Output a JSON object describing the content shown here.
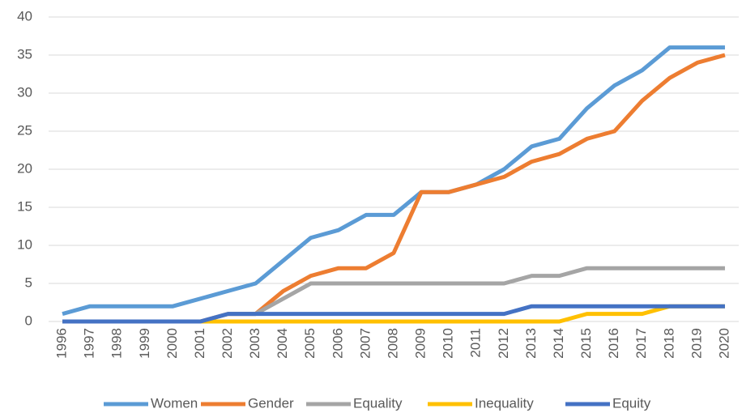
{
  "chart_data": {
    "type": "line",
    "categories": [
      "1996",
      "1997",
      "1998",
      "1999",
      "2000",
      "2001",
      "2002",
      "2003",
      "2004",
      "2005",
      "2006",
      "2007",
      "2008",
      "2009",
      "2010",
      "2011",
      "2012",
      "2013",
      "2014",
      "2015",
      "2016",
      "2017",
      "2018",
      "2019",
      "2020"
    ],
    "series": [
      {
        "name": "Women",
        "color": "#5b9bd5",
        "values": [
          1,
          2,
          2,
          2,
          2,
          3,
          4,
          5,
          8,
          11,
          12,
          14,
          14,
          17,
          17,
          18,
          20,
          23,
          24,
          28,
          31,
          33,
          36,
          36,
          36
        ]
      },
      {
        "name": "Gender",
        "color": "#ed7d31",
        "values": [
          0,
          0,
          0,
          0,
          0,
          0,
          1,
          1,
          4,
          6,
          7,
          7,
          9,
          17,
          17,
          18,
          19,
          21,
          22,
          24,
          25,
          29,
          32,
          34,
          35
        ]
      },
      {
        "name": "Equality",
        "color": "#a5a5a5",
        "values": [
          0,
          0,
          0,
          0,
          0,
          0,
          1,
          1,
          3,
          5,
          5,
          5,
          5,
          5,
          5,
          5,
          5,
          6,
          6,
          7,
          7,
          7,
          7,
          7,
          7
        ]
      },
      {
        "name": "Inequality",
        "color": "#ffc000",
        "values": [
          0,
          0,
          0,
          0,
          0,
          0,
          0,
          0,
          0,
          0,
          0,
          0,
          0,
          0,
          0,
          0,
          0,
          0,
          0,
          1,
          1,
          1,
          2,
          2,
          2
        ]
      },
      {
        "name": "Equity",
        "color": "#4472c4",
        "values": [
          0,
          0,
          0,
          0,
          0,
          0,
          1,
          1,
          1,
          1,
          1,
          1,
          1,
          1,
          1,
          1,
          1,
          2,
          2,
          2,
          2,
          2,
          2,
          2,
          2
        ]
      }
    ],
    "ylim": [
      0,
      40
    ],
    "yticks": [
      0,
      5,
      10,
      15,
      20,
      25,
      30,
      35,
      40
    ],
    "grid": true,
    "legend": "bottom"
  }
}
